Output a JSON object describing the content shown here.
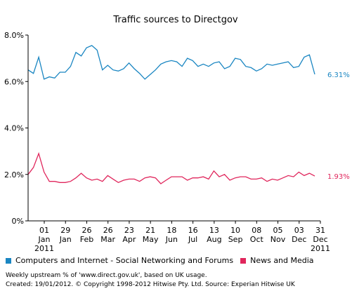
{
  "colors": {
    "series1": "#1a86c2",
    "series2": "#e0265c",
    "axis": "#000000",
    "grid": "#999999"
  },
  "footer": {
    "line1": "Weekly upstream % of 'www.direct.gov.uk', based on UK usage.",
    "line2": "Created: 19/01/2012. © Copyright 1998-2012 Hitwise Pty. Ltd.    Source: Experian Hitwise UK"
  },
  "chart_data": {
    "type": "line",
    "title": "Traffic sources to Directgov",
    "xlabel": "",
    "ylabel": "",
    "ylim": [
      0,
      8
    ],
    "yticks": [
      "0%",
      "2.0%",
      "4.0%",
      "6.0%",
      "8.0%"
    ],
    "grid": false,
    "legend": "bottom",
    "x_ticks": [
      {
        "day": "01",
        "month": "Jan",
        "year": "2011"
      },
      {
        "day": "29",
        "month": "Jan",
        "year": ""
      },
      {
        "day": "26",
        "month": "Feb",
        "year": ""
      },
      {
        "day": "26",
        "month": "Mar",
        "year": ""
      },
      {
        "day": "23",
        "month": "Apr",
        "year": ""
      },
      {
        "day": "21",
        "month": "May",
        "year": ""
      },
      {
        "day": "18",
        "month": "Jun",
        "year": ""
      },
      {
        "day": "16",
        "month": "Jul",
        "year": ""
      },
      {
        "day": "13",
        "month": "Aug",
        "year": ""
      },
      {
        "day": "10",
        "month": "Sep",
        "year": ""
      },
      {
        "day": "08",
        "month": "Oct",
        "year": ""
      },
      {
        "day": "05",
        "month": "Nov",
        "year": ""
      },
      {
        "day": "03",
        "month": "Dec",
        "year": ""
      },
      {
        "day": "31",
        "month": "Dec",
        "year": "2011"
      }
    ],
    "series": [
      {
        "name": "Computers and Internet - Social Networking and Forums",
        "end_label": "6.31%",
        "values": [
          6.5,
          6.35,
          7.05,
          6.1,
          6.2,
          6.15,
          6.4,
          6.4,
          6.65,
          7.25,
          7.1,
          7.45,
          7.55,
          7.35,
          6.5,
          6.7,
          6.5,
          6.45,
          6.55,
          6.8,
          6.55,
          6.35,
          6.1,
          6.3,
          6.5,
          6.75,
          6.85,
          6.9,
          6.85,
          6.65,
          7.0,
          6.9,
          6.65,
          6.75,
          6.65,
          6.8,
          6.85,
          6.55,
          6.65,
          7.0,
          6.95,
          6.65,
          6.6,
          6.45,
          6.55,
          6.75,
          6.7,
          6.75,
          6.8,
          6.85,
          6.6,
          6.65,
          7.05,
          7.15,
          6.31
        ]
      },
      {
        "name": "News and Media",
        "end_label": "1.93%",
        "values": [
          2.0,
          2.3,
          2.9,
          2.1,
          1.7,
          1.7,
          1.65,
          1.65,
          1.7,
          1.85,
          2.05,
          1.85,
          1.75,
          1.8,
          1.7,
          1.95,
          1.8,
          1.65,
          1.75,
          1.8,
          1.8,
          1.7,
          1.85,
          1.9,
          1.85,
          1.6,
          1.75,
          1.9,
          1.9,
          1.9,
          1.75,
          1.85,
          1.85,
          1.9,
          1.8,
          2.15,
          1.9,
          2.0,
          1.75,
          1.85,
          1.9,
          1.9,
          1.8,
          1.8,
          1.85,
          1.7,
          1.8,
          1.75,
          1.85,
          1.95,
          1.9,
          2.1,
          1.95,
          2.05,
          1.93
        ]
      }
    ]
  }
}
